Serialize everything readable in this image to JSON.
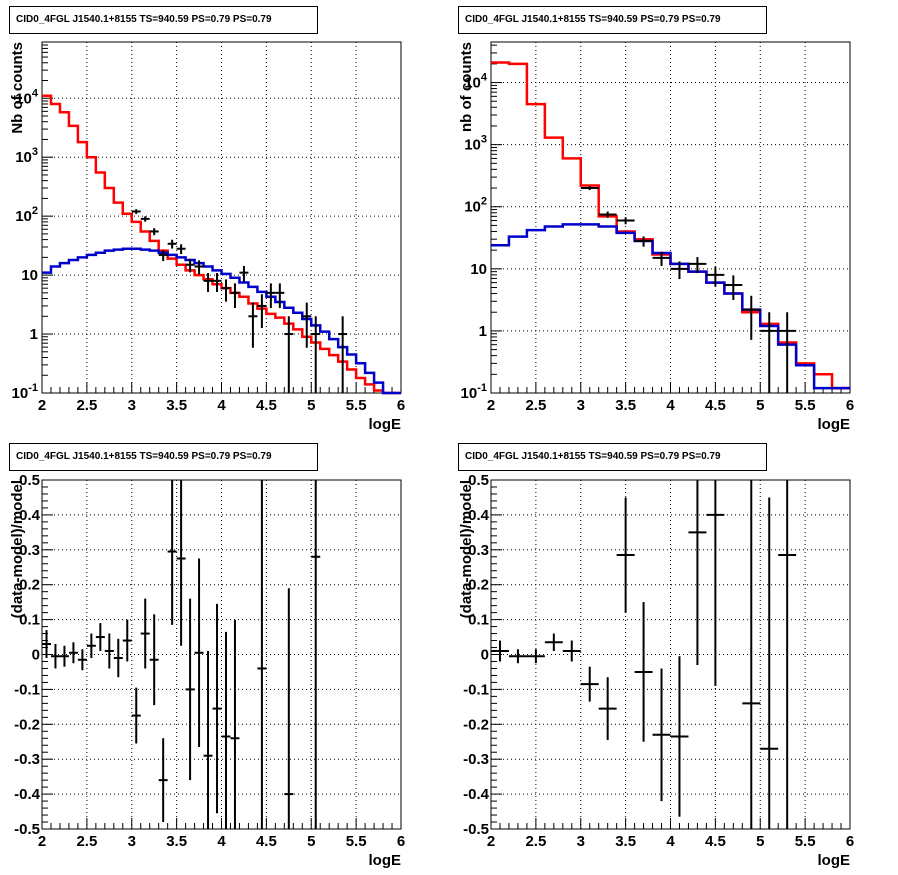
{
  "panels": [
    {
      "title": "CID0_4FGL J1540.1+8155 TS=940.59 PS=0.79 PS=0.79",
      "chart_data": {
        "type": "line",
        "xlabel": "logE",
        "ylabel": "Nb of counts",
        "xlim": [
          2,
          6
        ],
        "ylim": [
          0.1,
          90000
        ],
        "log_y": true,
        "grid": true,
        "bin_width": 0.1,
        "bin_edges": [
          2.0,
          2.1,
          2.2,
          2.3,
          2.4,
          2.5,
          2.6,
          2.7,
          2.8,
          2.9,
          3.0,
          3.1,
          3.2,
          3.3,
          3.4,
          3.5,
          3.6,
          3.7,
          3.8,
          3.9,
          4.0,
          4.1,
          4.2,
          4.3,
          4.4,
          4.5,
          4.6,
          4.7,
          4.8,
          4.9,
          5.0,
          5.1,
          5.2,
          5.3,
          5.4,
          5.5,
          5.6,
          5.7,
          5.8,
          5.9,
          6.0
        ],
        "series": [
          {
            "color": "#ff0000",
            "kind": "step",
            "values": [
              11000,
              8000,
              5800,
              3400,
              1800,
              1000,
              550,
              300,
              170,
              110,
              80,
              55,
              38,
              26,
              19,
              15,
              12,
              10,
              8.5,
              7,
              6,
              5,
              4.3,
              3.3,
              2.7,
              2.2,
              1.9,
              1.5,
              1.2,
              0.9,
              0.72,
              0.56,
              0.44,
              0.34,
              0.25,
              0.18,
              0.14,
              0.11,
              0.1,
              0.1
            ]
          },
          {
            "color": "#0000cc",
            "kind": "step",
            "values": [
              11,
              14,
              16,
              18,
              20,
              22,
              24,
              26,
              27,
              28,
              28,
              27,
              26,
              24,
              22,
              20,
              18,
              16,
              14,
              12,
              10.5,
              9,
              7.5,
              6.3,
              5.2,
              4.3,
              3.5,
              2.8,
              2.3,
              1.8,
              1.4,
              1.1,
              0.82,
              0.6,
              0.45,
              0.32,
              0.22,
              0.15,
              0.1,
              0.1
            ]
          },
          {
            "color": "#000000",
            "kind": "points",
            "x": [
              3.05,
              3.15,
              3.25,
              3.35,
              3.45,
              3.55,
              3.65,
              3.75,
              3.85,
              3.95,
              4.05,
              4.15,
              4.25,
              4.35,
              4.45,
              4.55,
              4.65,
              4.75,
              4.95,
              5.05,
              5.35
            ],
            "y": [
              120,
              90,
              55,
              22,
              34,
              28,
              15,
              14,
              8,
              8,
              6,
              5,
              11,
              2,
              3,
              5,
              5,
              1,
              2,
              1,
              1
            ]
          }
        ]
      }
    },
    {
      "title": "CID0_4FGL J1540.1+8155 TS=940.59 PS=0.79 PS=0.79",
      "chart_data": {
        "type": "line",
        "xlabel": "logE",
        "ylabel": "nb of counts",
        "xlim": [
          2,
          6
        ],
        "ylim": [
          0.1,
          45000
        ],
        "log_y": true,
        "grid": true,
        "bin_width": 0.2,
        "bin_edges": [
          2.0,
          2.2,
          2.4,
          2.6,
          2.8,
          3.0,
          3.2,
          3.4,
          3.6,
          3.8,
          4.0,
          4.2,
          4.4,
          4.6,
          4.8,
          5.0,
          5.2,
          5.4,
          5.6,
          5.8,
          6.0
        ],
        "series": [
          {
            "color": "#ff0000",
            "kind": "step",
            "values": [
              21000,
              20000,
              4500,
              1300,
              600,
              220,
              70,
              40,
              30,
              17,
              12,
              9,
              6,
              4,
              2,
              1.3,
              0.65,
              0.3,
              0.2,
              0.12
            ]
          },
          {
            "color": "#0000cc",
            "kind": "step",
            "values": [
              24,
              33,
              42,
              48,
              52,
              52,
              48,
              38,
              28,
              18,
              12,
              9,
              6,
              4,
              2.2,
              1.2,
              0.6,
              0.28,
              0.12,
              0.12
            ]
          },
          {
            "color": "#000000",
            "kind": "points",
            "x": [
              3.1,
              3.3,
              3.5,
              3.7,
              3.9,
              4.1,
              4.3,
              4.5,
              4.7,
              4.9,
              5.1,
              5.3
            ],
            "y": [
              200,
              75,
              60,
              28,
              15,
              10,
              12,
              8,
              5.5,
              2.2,
              1,
              1
            ]
          }
        ]
      }
    },
    {
      "title": "CID0_4FGL J1540.1+8155 TS=940.59 PS=0.79 PS=0.79",
      "chart_data": {
        "type": "scatter",
        "xlabel": "logE",
        "ylabel": "(data-model)/model",
        "xlim": [
          2,
          6
        ],
        "ylim": [
          -0.5,
          0.5
        ],
        "grid": true,
        "points": [
          {
            "x": 2.05,
            "y": 0.03,
            "xerr": 0.05,
            "yerr": 0.04
          },
          {
            "x": 2.15,
            "y": -0.005,
            "xerr": 0.05,
            "yerr": 0.035
          },
          {
            "x": 2.25,
            "y": -0.005,
            "xerr": 0.05,
            "yerr": 0.03
          },
          {
            "x": 2.35,
            "y": 0.005,
            "xerr": 0.05,
            "yerr": 0.03
          },
          {
            "x": 2.45,
            "y": -0.015,
            "xerr": 0.05,
            "yerr": 0.03
          },
          {
            "x": 2.55,
            "y": 0.025,
            "xerr": 0.05,
            "yerr": 0.035
          },
          {
            "x": 2.65,
            "y": 0.05,
            "xerr": 0.05,
            "yerr": 0.04
          },
          {
            "x": 2.75,
            "y": 0.01,
            "xerr": 0.05,
            "yerr": 0.05
          },
          {
            "x": 2.85,
            "y": -0.01,
            "xerr": 0.05,
            "yerr": 0.055
          },
          {
            "x": 2.95,
            "y": 0.04,
            "xerr": 0.05,
            "yerr": 0.06
          },
          {
            "x": 3.05,
            "y": -0.175,
            "xerr": 0.05,
            "yerr": 0.08
          },
          {
            "x": 3.15,
            "y": 0.06,
            "xerr": 0.05,
            "yerr": 0.1
          },
          {
            "x": 3.25,
            "y": -0.015,
            "xerr": 0.05,
            "yerr": 0.13
          },
          {
            "x": 3.35,
            "y": -0.36,
            "xerr": 0.05,
            "yerr": 0.12
          },
          {
            "x": 3.45,
            "y": 0.295,
            "xerr": 0.05,
            "yerr": 0.21
          },
          {
            "x": 3.55,
            "y": 0.275,
            "xerr": 0.05,
            "yerr": 0.25
          },
          {
            "x": 3.65,
            "y": -0.1,
            "xerr": 0.05,
            "yerr": 0.26
          },
          {
            "x": 3.75,
            "y": 0.005,
            "xerr": 0.05,
            "yerr": 0.27
          },
          {
            "x": 3.85,
            "y": -0.29,
            "xerr": 0.05,
            "yerr": 0.3
          },
          {
            "x": 3.95,
            "y": -0.155,
            "xerr": 0.05,
            "yerr": 0.3
          },
          {
            "x": 4.05,
            "y": -0.235,
            "xerr": 0.05,
            "yerr": 0.3
          },
          {
            "x": 4.15,
            "y": -0.24,
            "xerr": 0.05,
            "yerr": 0.34
          },
          {
            "x": 4.45,
            "y": -0.04,
            "xerr": 0.05,
            "yerr": 0.6
          },
          {
            "x": 4.75,
            "y": -0.4,
            "xerr": 0.05,
            "yerr": 0.59
          },
          {
            "x": 5.05,
            "y": 0.28,
            "xerr": 0.05,
            "yerr": 0.8
          }
        ]
      }
    },
    {
      "title": "CID0_4FGL J1540.1+8155 TS=940.59 PS=0.79 PS=0.79",
      "chart_data": {
        "type": "scatter",
        "xlabel": "logE",
        "ylabel": "(data-model)/model",
        "xlim": [
          2,
          6
        ],
        "ylim": [
          -0.5,
          0.5
        ],
        "grid": true,
        "points": [
          {
            "x": 2.1,
            "y": 0.01,
            "xerr": 0.1,
            "yerr": 0.03
          },
          {
            "x": 2.3,
            "y": -0.005,
            "xerr": 0.1,
            "yerr": 0.02
          },
          {
            "x": 2.5,
            "y": -0.005,
            "xerr": 0.1,
            "yerr": 0.02
          },
          {
            "x": 2.7,
            "y": 0.035,
            "xerr": 0.1,
            "yerr": 0.025
          },
          {
            "x": 2.9,
            "y": 0.01,
            "xerr": 0.1,
            "yerr": 0.03
          },
          {
            "x": 3.1,
            "y": -0.085,
            "xerr": 0.1,
            "yerr": 0.05
          },
          {
            "x": 3.3,
            "y": -0.155,
            "xerr": 0.1,
            "yerr": 0.09
          },
          {
            "x": 3.5,
            "y": 0.285,
            "xerr": 0.1,
            "yerr": 0.165
          },
          {
            "x": 3.7,
            "y": -0.05,
            "xerr": 0.1,
            "yerr": 0.2
          },
          {
            "x": 3.9,
            "y": -0.23,
            "xerr": 0.1,
            "yerr": 0.19
          },
          {
            "x": 4.1,
            "y": -0.235,
            "xerr": 0.1,
            "yerr": 0.23
          },
          {
            "x": 4.3,
            "y": 0.35,
            "xerr": 0.1,
            "yerr": 0.38
          },
          {
            "x": 4.5,
            "y": 0.4,
            "xerr": 0.1,
            "yerr": 0.49
          },
          {
            "x": 4.9,
            "y": -0.14,
            "xerr": 0.1,
            "yerr": 0.65
          },
          {
            "x": 5.1,
            "y": -0.27,
            "xerr": 0.1,
            "yerr": 0.72
          },
          {
            "x": 5.3,
            "y": 0.285,
            "xerr": 0.1,
            "yerr": 0.9
          }
        ]
      }
    }
  ]
}
